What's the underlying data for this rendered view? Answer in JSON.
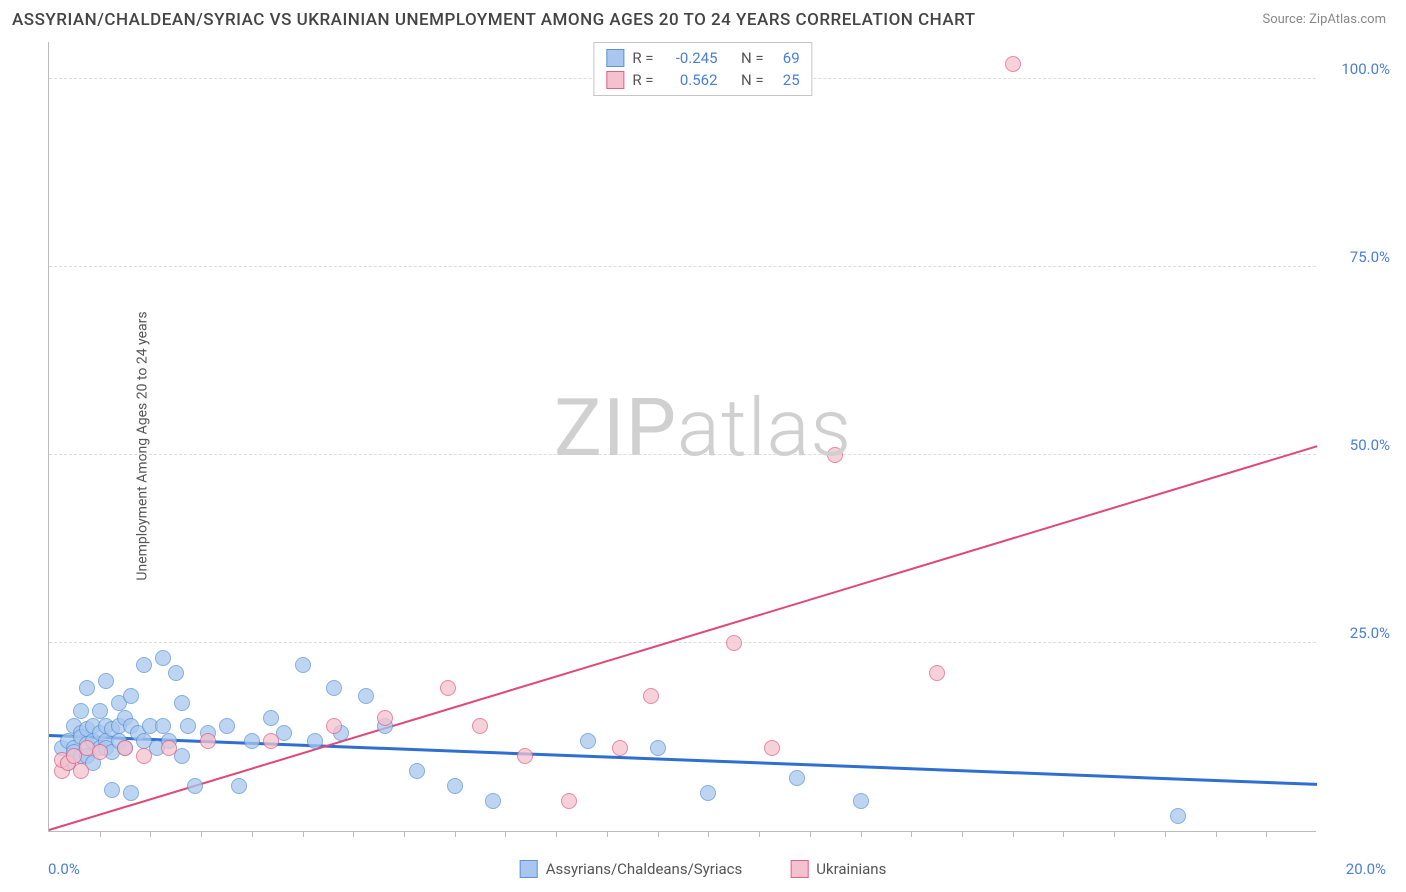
{
  "title": "ASSYRIAN/CHALDEAN/SYRIAC VS UKRAINIAN UNEMPLOYMENT AMONG AGES 20 TO 24 YEARS CORRELATION CHART",
  "source": "Source: ZipAtlas.com",
  "ylabel": "Unemployment Among Ages 20 to 24 years",
  "watermark_a": "ZIP",
  "watermark_b": "atlas",
  "chart": {
    "type": "scatter",
    "xlim": [
      0,
      20
    ],
    "ylim": [
      0,
      105
    ],
    "xticks": [
      0.8,
      1.6,
      2.4,
      3.2,
      4.0,
      4.8,
      5.6,
      6.4,
      7.2,
      8.0,
      8.8,
      9.6,
      10.4,
      11.2,
      12.0,
      12.8,
      13.6,
      14.4,
      15.2,
      16.0,
      16.8,
      17.6,
      18.4,
      19.2
    ],
    "yticks": [
      {
        "v": 25,
        "label": "25.0%"
      },
      {
        "v": 50,
        "label": "50.0%"
      },
      {
        "v": 75,
        "label": "75.0%"
      },
      {
        "v": 100,
        "label": "100.0%"
      }
    ],
    "xmin_label": "0.0%",
    "xmax_label": "20.0%",
    "background_color": "#ffffff",
    "grid_color": "#dddddd",
    "axis_color": "#bbbbbb",
    "tick_label_color": "#4a7fd6"
  },
  "series": [
    {
      "name": "Assyrians/Chaldeans/Syriacs",
      "fill": "#a9c7ee",
      "stroke": "#5c93d8",
      "opacity": 0.75,
      "radius": 8,
      "R": "-0.245",
      "N": "69",
      "trend": {
        "x1": 0,
        "y1": 12.5,
        "x2": 20,
        "y2": 6.0,
        "color": "#2e6fd1",
        "width": 2.5
      },
      "points": [
        [
          0.2,
          11
        ],
        [
          0.3,
          9
        ],
        [
          0.3,
          12
        ],
        [
          0.4,
          14
        ],
        [
          0.4,
          11
        ],
        [
          0.4,
          10.5
        ],
        [
          0.5,
          13
        ],
        [
          0.5,
          12.5
        ],
        [
          0.5,
          10
        ],
        [
          0.5,
          16
        ],
        [
          0.6,
          19
        ],
        [
          0.6,
          11.5
        ],
        [
          0.6,
          13.5
        ],
        [
          0.6,
          10
        ],
        [
          0.7,
          9
        ],
        [
          0.7,
          12
        ],
        [
          0.7,
          14
        ],
        [
          0.8,
          13
        ],
        [
          0.8,
          11
        ],
        [
          0.8,
          16
        ],
        [
          0.9,
          20
        ],
        [
          0.9,
          14
        ],
        [
          0.9,
          12
        ],
        [
          0.9,
          11
        ],
        [
          1.0,
          13.5
        ],
        [
          1.0,
          10.5
        ],
        [
          1.0,
          5.5
        ],
        [
          1.1,
          17
        ],
        [
          1.1,
          14
        ],
        [
          1.1,
          12
        ],
        [
          1.2,
          15
        ],
        [
          1.2,
          11
        ],
        [
          1.3,
          18
        ],
        [
          1.3,
          14
        ],
        [
          1.3,
          5
        ],
        [
          1.4,
          13
        ],
        [
          1.5,
          22
        ],
        [
          1.5,
          12
        ],
        [
          1.6,
          14
        ],
        [
          1.7,
          11
        ],
        [
          1.8,
          23
        ],
        [
          1.8,
          14
        ],
        [
          1.9,
          12
        ],
        [
          2.0,
          21
        ],
        [
          2.1,
          17
        ],
        [
          2.1,
          10
        ],
        [
          2.2,
          14
        ],
        [
          2.3,
          6
        ],
        [
          2.5,
          13
        ],
        [
          2.8,
          14
        ],
        [
          3.0,
          6
        ],
        [
          3.2,
          12
        ],
        [
          3.5,
          15
        ],
        [
          3.7,
          13
        ],
        [
          4.0,
          22
        ],
        [
          4.2,
          12
        ],
        [
          4.5,
          19
        ],
        [
          4.6,
          13
        ],
        [
          5.0,
          18
        ],
        [
          5.3,
          14
        ],
        [
          5.8,
          8
        ],
        [
          6.4,
          6
        ],
        [
          7.0,
          4
        ],
        [
          8.5,
          12
        ],
        [
          9.6,
          11
        ],
        [
          10.4,
          5
        ],
        [
          11.8,
          7
        ],
        [
          12.8,
          4
        ],
        [
          17.8,
          2
        ]
      ]
    },
    {
      "name": "Ukrainians",
      "fill": "#f3c2ce",
      "stroke": "#e65f87",
      "opacity": 0.75,
      "radius": 8,
      "R": "0.562",
      "N": "25",
      "trend": {
        "x1": 0,
        "y1": 0,
        "x2": 20,
        "y2": 51,
        "color": "#e04876",
        "width": 2
      },
      "points": [
        [
          0.2,
          8
        ],
        [
          0.2,
          9.5
        ],
        [
          0.3,
          9
        ],
        [
          0.4,
          10
        ],
        [
          0.5,
          8
        ],
        [
          0.6,
          11
        ],
        [
          0.8,
          10.5
        ],
        [
          1.2,
          11
        ],
        [
          1.5,
          10
        ],
        [
          1.9,
          11
        ],
        [
          2.5,
          12
        ],
        [
          3.5,
          12
        ],
        [
          4.5,
          14
        ],
        [
          5.3,
          15
        ],
        [
          6.3,
          19
        ],
        [
          6.8,
          14
        ],
        [
          7.5,
          10
        ],
        [
          8.2,
          4
        ],
        [
          9.0,
          11
        ],
        [
          9.5,
          18
        ],
        [
          10.8,
          25
        ],
        [
          11.4,
          11
        ],
        [
          14.0,
          21
        ],
        [
          12.4,
          50
        ],
        [
          15.2,
          102
        ]
      ]
    }
  ],
  "legend": [
    {
      "label": "Assyrians/Chaldeans/Syriacs",
      "fill": "#a9c7ee",
      "stroke": "#5c93d8"
    },
    {
      "label": "Ukrainians",
      "fill": "#f3c2ce",
      "stroke": "#e65f87"
    }
  ],
  "stats_labels": {
    "R": "R =",
    "N": "N ="
  }
}
